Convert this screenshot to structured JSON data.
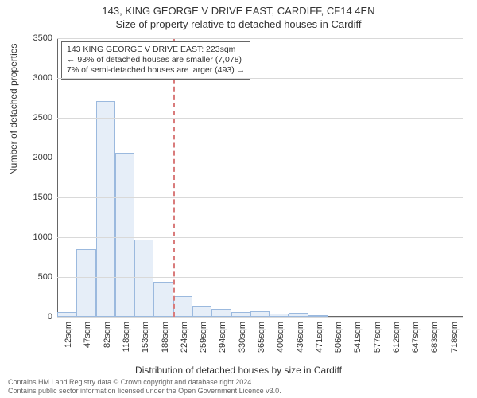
{
  "title_line1": "143, KING GEORGE V DRIVE EAST, CARDIFF, CF14 4EN",
  "title_line2": "Size of property relative to detached houses in Cardiff",
  "ylabel": "Number of detached properties",
  "xlabel": "Distribution of detached houses by size in Cardiff",
  "footer_line1": "Contains HM Land Registry data © Crown copyright and database right 2024.",
  "footer_line2": "Contains public sector information licensed under the Open Government Licence v3.0.",
  "chart": {
    "type": "histogram",
    "ylim": [
      0,
      3500
    ],
    "yticks": [
      0,
      500,
      1000,
      1500,
      2000,
      2500,
      3000,
      3500
    ],
    "background_color": "#ffffff",
    "grid_color": "#d9d9d9",
    "axis_color": "#666666",
    "text_color": "#333333",
    "bar_fill": "#e6eef8",
    "bar_border": "#9bb9de",
    "bar_width_ratio": 1.0,
    "title_fontsize": 13,
    "label_fontsize": 12,
    "tick_fontsize": 11,
    "categories": [
      "12sqm",
      "47sqm",
      "82sqm",
      "118sqm",
      "153sqm",
      "188sqm",
      "224sqm",
      "259sqm",
      "294sqm",
      "330sqm",
      "365sqm",
      "400sqm",
      "436sqm",
      "471sqm",
      "506sqm",
      "541sqm",
      "577sqm",
      "612sqm",
      "647sqm",
      "683sqm",
      "718sqm"
    ],
    "values": [
      60,
      850,
      2710,
      2060,
      970,
      440,
      260,
      130,
      100,
      60,
      70,
      40,
      50,
      20,
      0,
      0,
      0,
      0,
      0,
      0,
      0
    ]
  },
  "annotation": {
    "value_sqm": 223,
    "category_index_after": 6,
    "line_color": "#d97b7b",
    "box_border": "#666666",
    "lines": [
      "143 KING GEORGE V DRIVE EAST: 223sqm",
      "← 93% of detached houses are smaller (7,078)",
      "7% of semi-detached houses are larger (493) →"
    ]
  }
}
